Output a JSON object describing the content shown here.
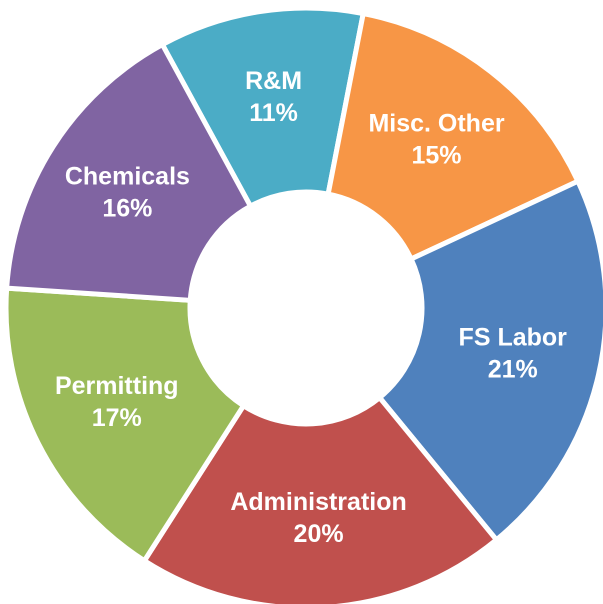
{
  "chart_data": {
    "type": "donut",
    "categories": [
      "R&M",
      "Misc. Other",
      "FS Labor",
      "Administration",
      "Permitting",
      "Chemicals"
    ],
    "values": [
      11,
      15,
      21,
      20,
      17,
      16
    ],
    "value_labels": [
      "11%",
      "15%",
      "21%",
      "20%",
      "17%",
      "16%"
    ],
    "colors": [
      "#4bacc6",
      "#f79646",
      "#4f81bd",
      "#c0504d",
      "#9bbb59",
      "#8064a2"
    ]
  }
}
